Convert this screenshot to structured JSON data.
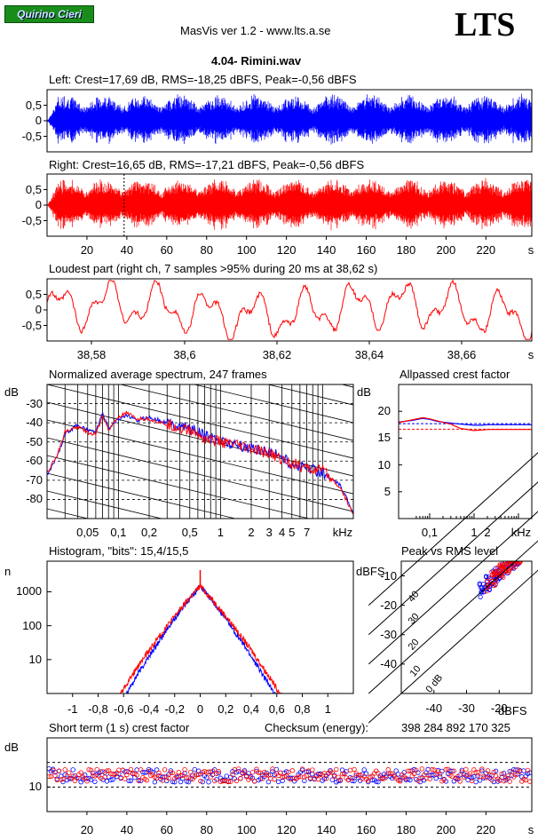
{
  "header": {
    "badge": "Quirino Cieri",
    "app_title": "MasVis ver 1.2 - www.lts.a.se",
    "logo": "LTS",
    "file_title": "4.04- Rimini.wav"
  },
  "colors": {
    "left": "#0000ff",
    "right": "#ff0000",
    "grid": "#000000"
  },
  "chart_data": [
    {
      "id": "left-waveform",
      "type": "area",
      "title": "Left: Crest=17,69 dB, RMS=-18,25 dBFS, Peak=-0,56 dBFS",
      "ylim": [
        -1,
        1
      ],
      "y_ticks": [
        "0,5",
        "0",
        "-0,5"
      ],
      "y_tick_values": [
        0.5,
        0,
        -0.5
      ],
      "series": [
        {
          "name": "Left",
          "color": "#0000ff",
          "envelope_peak": 0.94,
          "duration_s": 243
        }
      ]
    },
    {
      "id": "right-waveform",
      "type": "area",
      "title": "Right: Crest=16,65 dB, RMS=-17,21 dBFS, Peak=-0,56 dBFS",
      "ylim": [
        -1,
        1
      ],
      "y_ticks": [
        "0,5",
        "0",
        "-0,5"
      ],
      "y_tick_values": [
        0.5,
        0,
        -0.5
      ],
      "x_ticks": [
        "20",
        "40",
        "60",
        "80",
        "100",
        "120",
        "140",
        "160",
        "180",
        "200",
        "220",
        "s"
      ],
      "x_tick_values": [
        20,
        40,
        60,
        80,
        100,
        120,
        140,
        160,
        180,
        200,
        220
      ],
      "xlim": [
        0,
        243
      ],
      "marker_x": 38.62,
      "series": [
        {
          "name": "Right",
          "color": "#ff0000",
          "envelope_peak": 0.94,
          "duration_s": 243
        }
      ]
    },
    {
      "id": "loudest-part",
      "type": "line",
      "title": "Loudest part (right ch, 7 samples >95% during 20 ms at 38,62 s)",
      "xlim": [
        38.61,
        38.63
      ],
      "ylim": [
        -1,
        1
      ],
      "x_ticks": [
        "38,58",
        "38,6",
        "38,62",
        "38,64",
        "38,66",
        "s"
      ],
      "y_ticks": [
        "0,5",
        "0",
        "-0,5"
      ],
      "y_tick_values": [
        0.5,
        0,
        -0.5
      ]
    },
    {
      "id": "spectrum",
      "type": "line",
      "title": "Normalized average spectrum, 247 frames",
      "ylabel": "dB",
      "ylim": [
        -90,
        -20
      ],
      "y_ticks": [
        "-30",
        "-40",
        "-50",
        "-60",
        "-70",
        "-80"
      ],
      "y_tick_values": [
        -30,
        -40,
        -50,
        -60,
        -70,
        -80
      ],
      "x_log": true,
      "xlim_hz": [
        20,
        20000
      ],
      "x_ticks": [
        "0,05",
        "0,1",
        "0,2",
        "0,5",
        "1",
        "2",
        "3",
        "4",
        "5",
        "7",
        "kHz"
      ],
      "x_tick_values_khz": [
        0.05,
        0.1,
        0.2,
        0.5,
        1,
        2,
        3,
        4,
        5,
        7
      ],
      "series": [
        {
          "name": "Left",
          "color": "#0000ff",
          "x_khz": [
            0.02,
            0.025,
            0.03,
            0.04,
            0.05,
            0.06,
            0.07,
            0.08,
            0.1,
            0.12,
            0.15,
            0.2,
            0.3,
            0.5,
            0.7,
            1,
            1.5,
            2,
            3,
            4,
            5,
            7,
            10,
            15,
            20
          ],
          "y": [
            -67,
            -58,
            -46,
            -41,
            -44,
            -45,
            -35,
            -43,
            -38,
            -36,
            -39,
            -37,
            -40,
            -43,
            -47,
            -49,
            -52,
            -53,
            -55,
            -58,
            -62,
            -63,
            -66,
            -73,
            -87
          ]
        },
        {
          "name": "Right",
          "color": "#ff0000",
          "x_khz": [
            0.02,
            0.025,
            0.03,
            0.04,
            0.05,
            0.06,
            0.07,
            0.08,
            0.1,
            0.12,
            0.15,
            0.2,
            0.3,
            0.5,
            0.7,
            1,
            1.5,
            2,
            3,
            4,
            5,
            7,
            10,
            15,
            20
          ],
          "y": [
            -66,
            -57,
            -45,
            -42,
            -45,
            -46,
            -36,
            -44,
            -37,
            -35,
            -38,
            -38,
            -41,
            -44,
            -48,
            -50,
            -52,
            -54,
            -56,
            -59,
            -61,
            -64,
            -65,
            -74,
            -88
          ]
        }
      ]
    },
    {
      "id": "allpassed-crest",
      "type": "line",
      "title": "Allpassed crest factor",
      "ylabel": "dB",
      "ylim": [
        0,
        25
      ],
      "y_ticks": [
        "20",
        "15",
        "10",
        "5"
      ],
      "y_tick_values": [
        20,
        15,
        10,
        5
      ],
      "x_log": true,
      "x_ticks": [
        "0,1",
        "1",
        "2",
        "kHz"
      ],
      "x_tick_values_khz": [
        0.1,
        1,
        2
      ],
      "series": [
        {
          "name": "Left",
          "color": "#0000ff",
          "x_khz": [
            0.02,
            0.04,
            0.07,
            0.1,
            0.15,
            0.3,
            0.5,
            1,
            1.5,
            2,
            5,
            20
          ],
          "y": [
            18,
            18.3,
            18.7,
            18.5,
            18.1,
            17.8,
            17.6,
            17.4,
            17.4,
            17.5,
            17.5,
            17.5
          ]
        },
        {
          "name": "Right",
          "color": "#ff0000",
          "x_khz": [
            0.02,
            0.04,
            0.07,
            0.1,
            0.15,
            0.3,
            0.5,
            1,
            1.5,
            2,
            5,
            20
          ],
          "y": [
            17.9,
            18.4,
            18.8,
            18.6,
            18.2,
            17.6,
            16.8,
            16.4,
            16.5,
            16.6,
            16.6,
            16.6
          ]
        }
      ],
      "reference_lines_db": [
        17.69,
        16.65
      ]
    },
    {
      "id": "histogram",
      "type": "line",
      "title": "Histogram, \"bits\": 15,4/15,5",
      "ylabel": "n",
      "y_log": true,
      "y_ticks": [
        "1000",
        "100",
        "10"
      ],
      "y_tick_values": [
        1000,
        100,
        10
      ],
      "xlim": [
        -1.2,
        1.2
      ],
      "x_ticks": [
        "-1",
        "-0,8",
        "-0,6",
        "-0,4",
        "-0,2",
        "0",
        "0,2",
        "0,4",
        "0,6",
        "0,8",
        "1"
      ],
      "x_tick_values": [
        -1,
        -0.8,
        -0.6,
        -0.4,
        -0.2,
        0,
        0.2,
        0.4,
        0.6,
        0.8,
        1
      ],
      "peak_count": 1500
    },
    {
      "id": "peak-vs-rms",
      "type": "scatter",
      "title": "Peak vs RMS level",
      "ylabel": "dBFS",
      "xlabel": "dBFS",
      "xlim": [
        -50,
        -10
      ],
      "ylim": [
        -50,
        -5
      ],
      "x_ticks": [
        "-40",
        "-30",
        "-20"
      ],
      "x_tick_values": [
        -40,
        -30,
        -20
      ],
      "y_ticks": [
        "-10",
        "-20",
        "-30",
        "-40"
      ],
      "y_tick_values": [
        -10,
        -20,
        -30,
        -40
      ],
      "diagonal_labels": [
        "40",
        "30",
        "20",
        "10",
        "0 dB"
      ],
      "diagonal_values": [
        40,
        30,
        20,
        10,
        0
      ],
      "series": [
        {
          "name": "Left",
          "color": "#0000ff",
          "cluster": {
            "rms": [
              -26,
              -14
            ],
            "peak": [
              -14,
              -6
            ]
          }
        },
        {
          "name": "Right",
          "color": "#ff0000",
          "cluster": {
            "rms": [
              -24,
              -13
            ],
            "peak": [
              -12,
              -5
            ]
          }
        }
      ]
    },
    {
      "id": "short-term-crest",
      "type": "scatter",
      "title": "Short term (1 s) crest factor",
      "checksum_label": "Checksum (energy):",
      "checksum_value": "398 284 892 170 325",
      "ylabel": "dB",
      "y_ticks": [
        "10"
      ],
      "y_tick_values": [
        10
      ],
      "ylim": [
        5,
        20
      ],
      "dashed_lines": [
        15,
        10
      ],
      "x_ticks": [
        "20",
        "40",
        "60",
        "80",
        "100",
        "120",
        "140",
        "160",
        "180",
        "200",
        "220",
        "s"
      ],
      "x_tick_values": [
        20,
        40,
        60,
        80,
        100,
        120,
        140,
        160,
        180,
        200,
        220
      ],
      "xlim": [
        0,
        243
      ],
      "series": [
        {
          "name": "Left",
          "color": "#0000ff",
          "mean": 12.3,
          "spread": 1.3
        },
        {
          "name": "Right",
          "color": "#ff0000",
          "mean": 12.4,
          "spread": 1.3
        }
      ]
    }
  ]
}
